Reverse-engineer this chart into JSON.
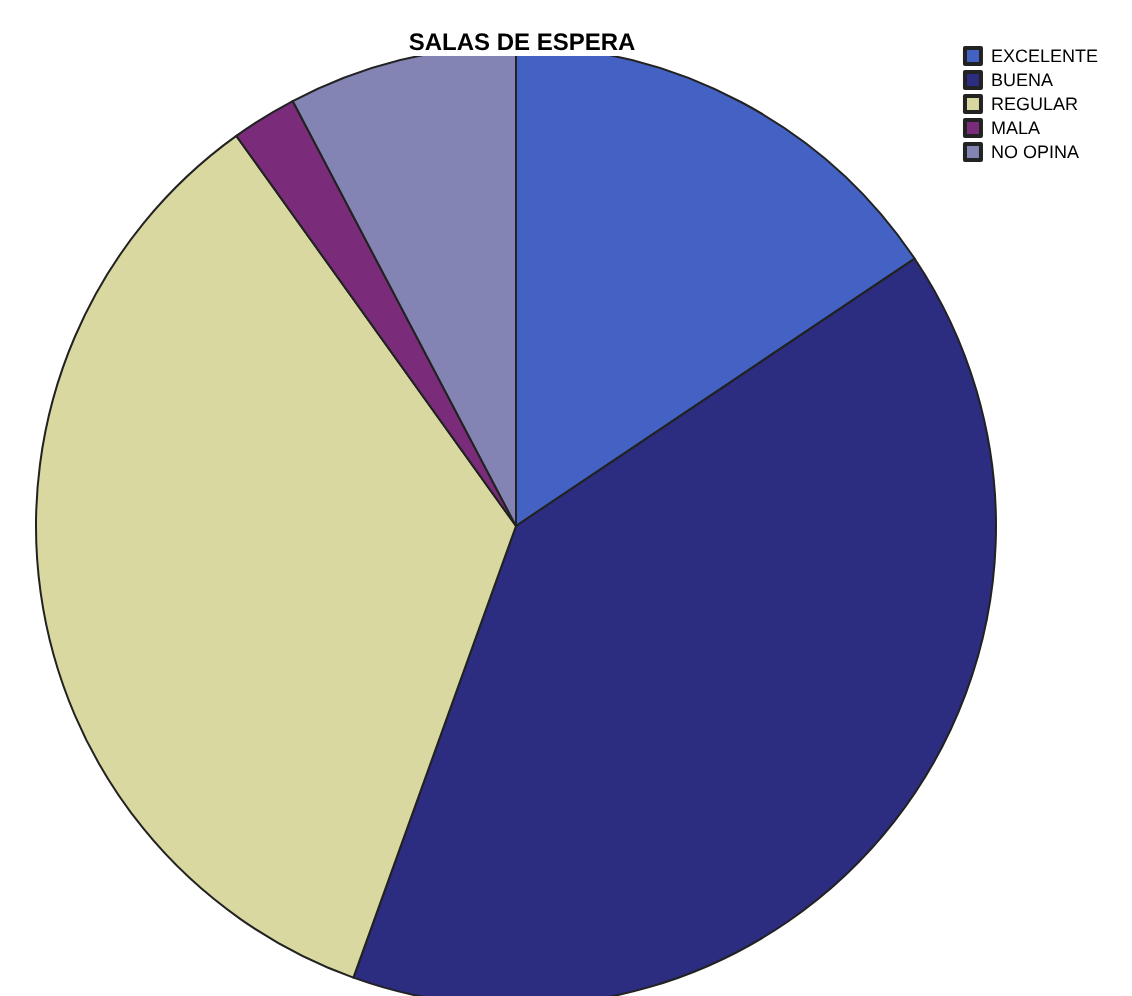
{
  "chart_data": {
    "type": "pie",
    "title": "SALAS DE ESPERA",
    "categories": [
      "EXCELENTE",
      "BUENA",
      "REGULAR",
      "MALA",
      "NO OPINA"
    ],
    "values": [
      15.6,
      39.9,
      34.6,
      2.2,
      7.7
    ],
    "colors": [
      "#4462c4",
      "#2c2c80",
      "#d8d8a0",
      "#7a2c7a",
      "#8484b4"
    ],
    "legend": "top right"
  }
}
